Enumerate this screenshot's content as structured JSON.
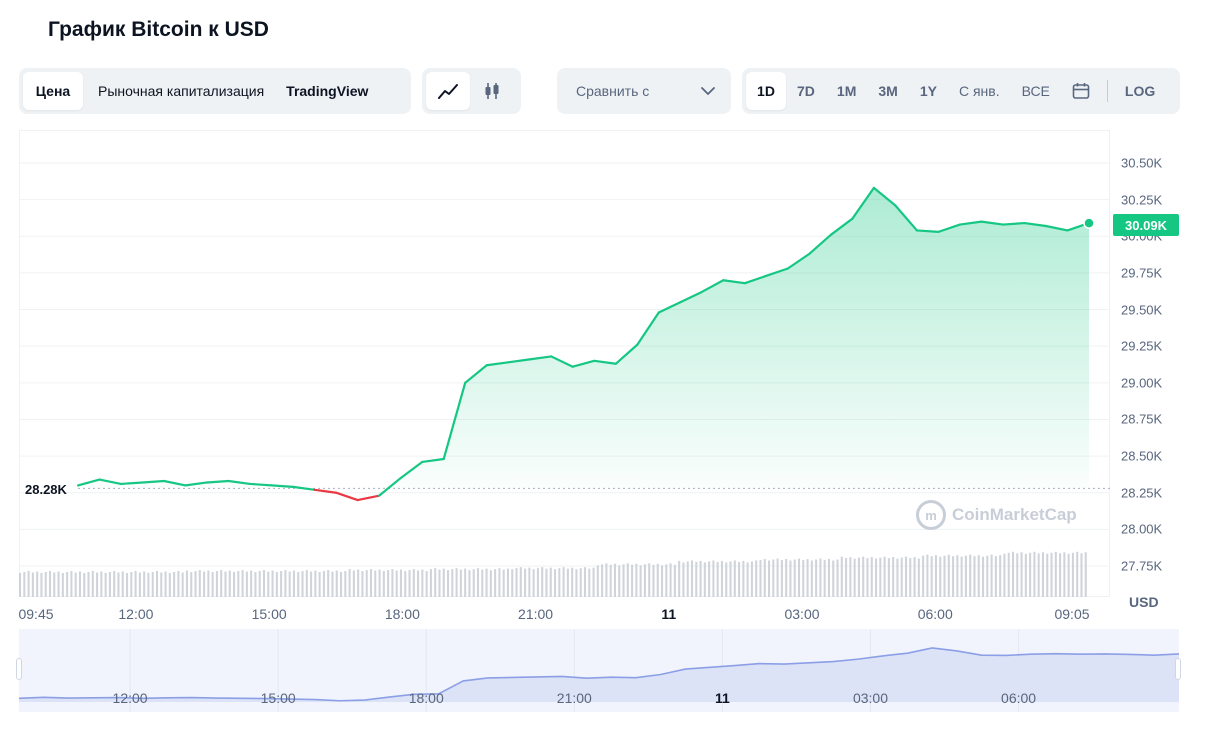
{
  "title": "График Bitcoin к USD",
  "toolbar": {
    "type_tabs": [
      "Цена",
      "Рыночная капитализация",
      "TradingView"
    ],
    "compare_label": "Сравнить с",
    "ranges": [
      "1D",
      "7D",
      "1M",
      "3M",
      "1Y",
      "С янв.",
      "ВСЕ"
    ],
    "log_label": "LOG",
    "icons": [
      "line-chart-icon",
      "candlestick-icon",
      "chevron-down-icon",
      "calendar-icon"
    ]
  },
  "colors": {
    "up": "#16c784",
    "down": "#ea3943",
    "navigator_line": "#8c9fe6",
    "volume": "#c8ccd3"
  },
  "current_price_label": "30.09K",
  "open_price_label": "28.28K",
  "watermark": "CoinMarketCap",
  "chart_data": {
    "type": "area",
    "title": "График Bitcoin к USD",
    "ylabel": "USD",
    "ylim": [
      27600,
      30700
    ],
    "y_ticks": [
      "30.50K",
      "30.25K",
      "30.00K",
      "29.75K",
      "29.50K",
      "29.25K",
      "29.00K",
      "28.75K",
      "28.50K",
      "28.25K",
      "28.00K",
      "27.75K"
    ],
    "y_tick_values": [
      30500,
      30250,
      30000,
      29750,
      29500,
      29250,
      29000,
      28750,
      28500,
      28250,
      28000,
      27750
    ],
    "x_ticks": [
      "09:45",
      "12:00",
      "15:00",
      "18:00",
      "21:00",
      "11",
      "03:00",
      "06:00",
      "09:05"
    ],
    "x_tick_hours": [
      0,
      2.25,
      5.25,
      8.25,
      11.25,
      14.25,
      17.25,
      20.25,
      23.33
    ],
    "bold_x_ticks": [
      "11"
    ],
    "baseline": 28280,
    "current": 30090,
    "series": [
      {
        "x": [
          0,
          0.5,
          1,
          1.5,
          2,
          2.5,
          3,
          3.5,
          4,
          4.5,
          5,
          5.5,
          6,
          6.5,
          7,
          7.5,
          8,
          8.5,
          9,
          9.5,
          10,
          10.5,
          11,
          11.5,
          12,
          12.5,
          13,
          13.5,
          14,
          14.5,
          15,
          15.5,
          16,
          16.5,
          17,
          17.5,
          18,
          18.5,
          19,
          19.5,
          20,
          20.5,
          21,
          21.5,
          22,
          22.5,
          23,
          23.5
        ],
        "values": [
          28300,
          28340,
          28310,
          28320,
          28330,
          28300,
          28320,
          28330,
          28310,
          28300,
          28290,
          28270,
          28250,
          28200,
          28230,
          28350,
          28460,
          28480,
          29000,
          29120,
          29140,
          29160,
          29180,
          29110,
          29150,
          29130,
          29260,
          29480,
          29550,
          29620,
          29700,
          29680,
          29730,
          29780,
          29880,
          30010,
          30120,
          30330,
          30210,
          30040,
          30030,
          30080,
          30100,
          30080,
          30090,
          30070,
          30040,
          30090
        ]
      }
    ],
    "volume_levels": [
      0.25,
      0.25,
      0.26,
      0.26,
      0.27,
      0.28,
      0.29,
      0.33,
      0.36,
      0.38,
      0.4,
      0.42,
      0.45
    ]
  },
  "navigator": {
    "x_ticks": [
      "12:00",
      "15:00",
      "18:00",
      "21:00",
      "11",
      "03:00",
      "06:00"
    ],
    "bold_x_ticks": [
      "11"
    ]
  }
}
